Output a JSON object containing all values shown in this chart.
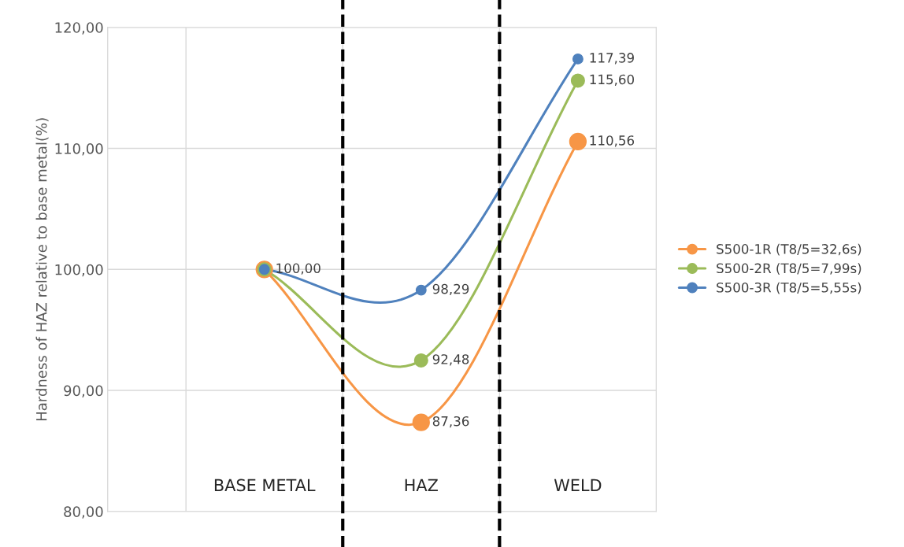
{
  "chart_data": {
    "type": "line",
    "ylabel": "Hardness of HAZ relative to base metal(%)",
    "categories": [
      "BASE METAL",
      "HAZ",
      "WELD"
    ],
    "series": [
      {
        "name": "S500-1R (T8/5=32,6s)",
        "color": "#f79646",
        "values": [
          100.0,
          87.36,
          110.56
        ],
        "value_labels": [
          null,
          "87,36",
          "110,56"
        ]
      },
      {
        "name": "S500-2R (T8/5=7,99s)",
        "color": "#9bbb59",
        "values": [
          100.0,
          92.48,
          115.6
        ],
        "value_labels": [
          null,
          "92,48",
          "115,60"
        ]
      },
      {
        "name": "S500-3R (T8/5=5,55s)",
        "color": "#4f81bd",
        "values": [
          100.0,
          98.29,
          117.39
        ],
        "value_labels": [
          "100,00",
          "98,29",
          "117,39"
        ]
      }
    ],
    "ylim": [
      80,
      120
    ],
    "yticks": [
      {
        "value": 80,
        "label": "80,00"
      },
      {
        "value": 90,
        "label": "90,00"
      },
      {
        "value": 100,
        "label": "100,00"
      },
      {
        "value": 110,
        "label": "110,00"
      },
      {
        "value": 120,
        "label": "120,00"
      }
    ],
    "grid": true,
    "legend": "right",
    "marker": "circle",
    "line_style": "solid"
  }
}
